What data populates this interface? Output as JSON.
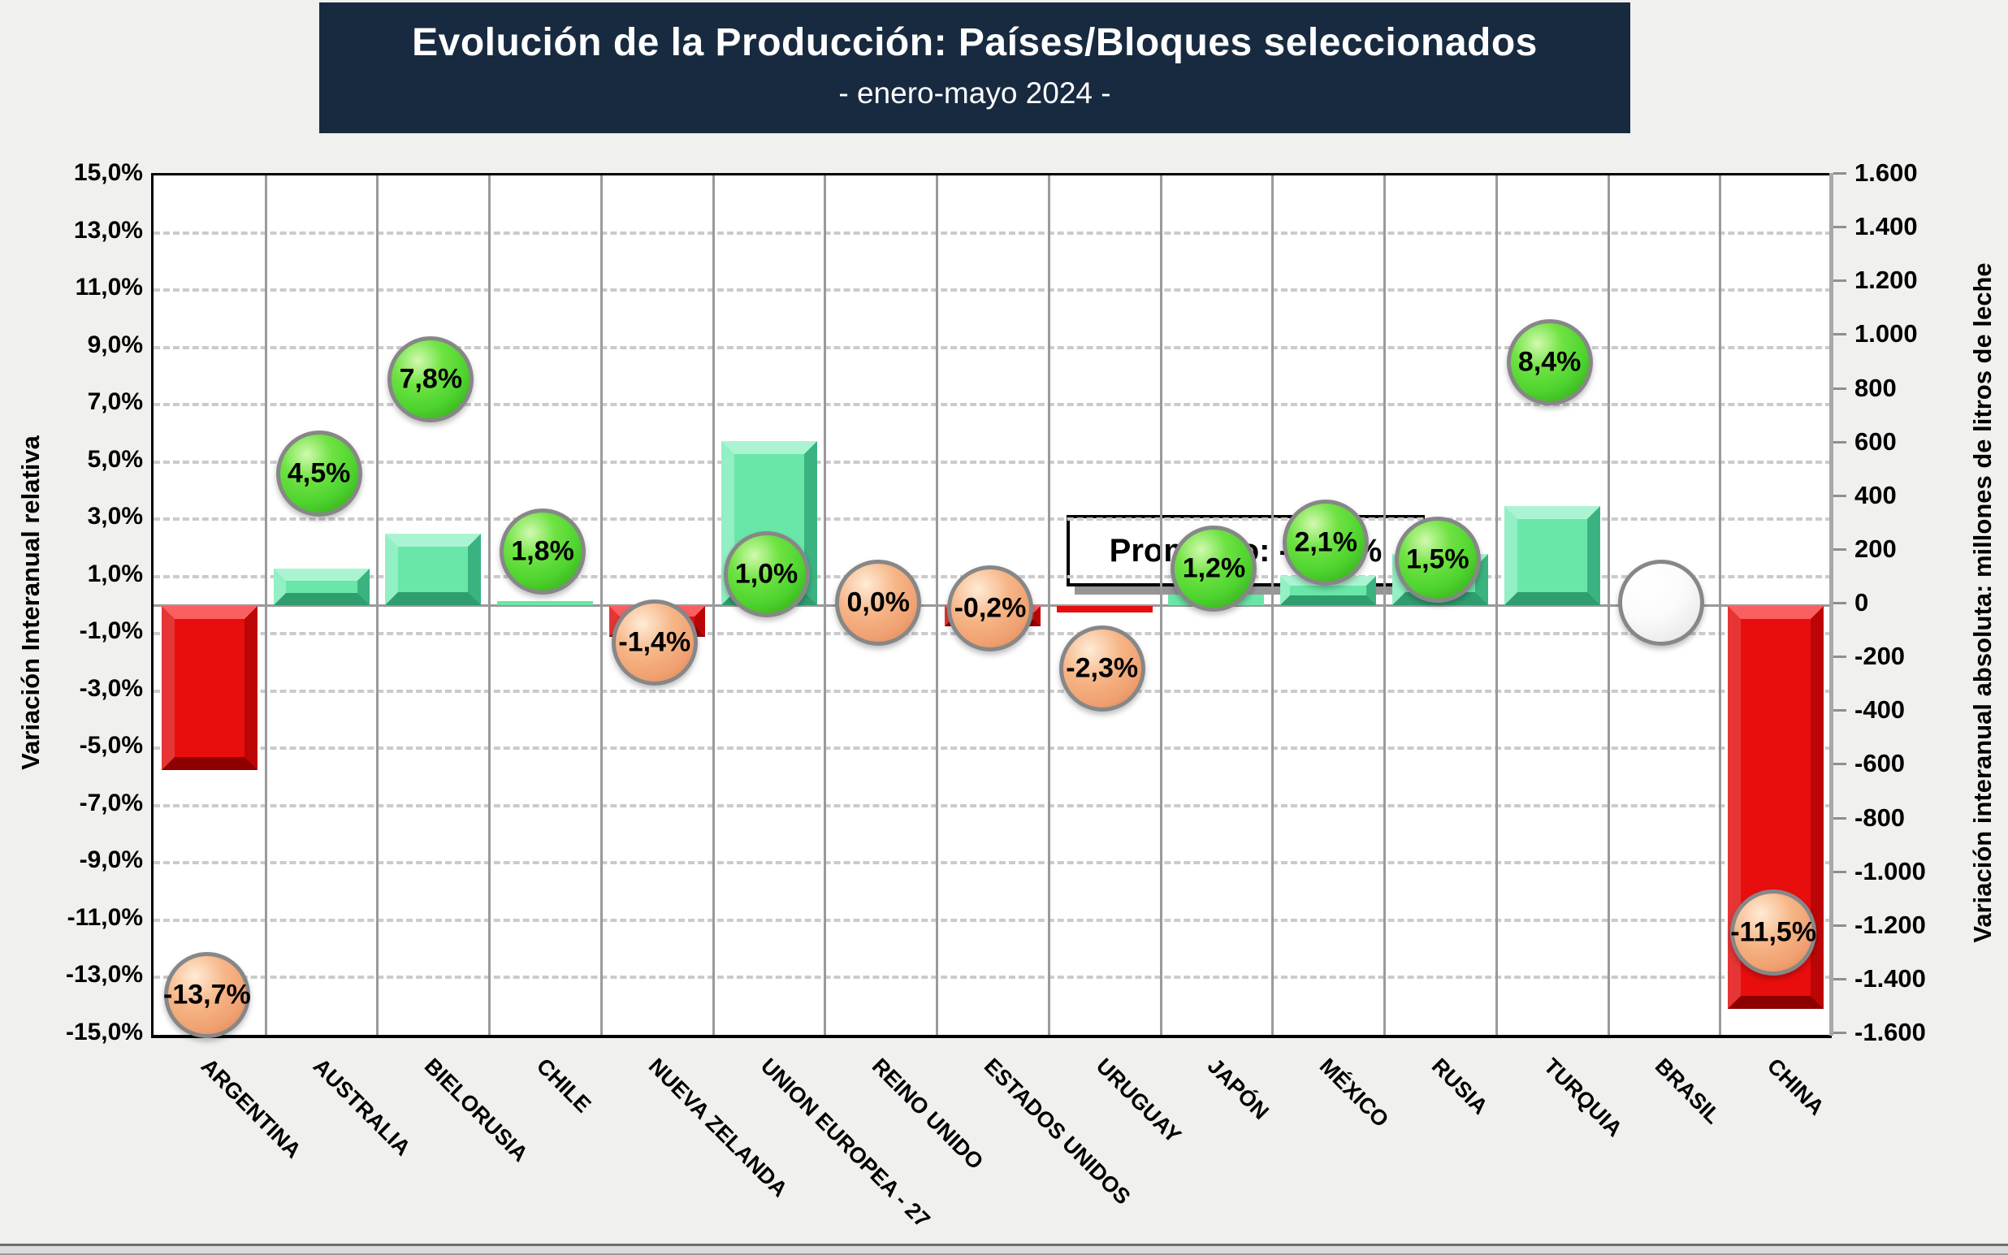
{
  "title": {
    "main": "Evolución de la Producción: Países/Bloques seleccionados",
    "subtitle": "- enero-mayo 2024 -"
  },
  "annotation": {
    "text": "Promedio: -0,32%"
  },
  "colors": {
    "title_bg": "#172A40",
    "background": "#F0F0EE",
    "plot_bg": "#FFFFFF",
    "positive_bar": "#69E7A8",
    "negative_bar": "#E90E0E",
    "positive_ball": "#4ED42F",
    "negative_ball": "#F2A878",
    "neutral_ball": "#FFFFFF"
  },
  "chart_data": {
    "type": "bar",
    "combo": "beveled bars on right axis + labeled sphere markers on left axis",
    "categories": [
      "ARGENTINA",
      "AUSTRALIA",
      "BIELORUSIA",
      "CHILE",
      "NUEVA ZELANDA",
      "UNION EUROPEA - 27",
      "REINO UNIDO",
      "ESTADOS UNIDOS",
      "URUGUAY",
      "JAPÓN",
      "MÉXICO",
      "RUSIA",
      "TURQUIA",
      "BRASIL",
      "CHINA"
    ],
    "series": [
      {
        "name": "Variación Interanual relativa",
        "type": "point",
        "axis": "left",
        "unit": "%",
        "values": [
          -13.7,
          4.5,
          7.8,
          1.8,
          -1.4,
          1.0,
          0.0,
          -0.2,
          -2.3,
          1.2,
          2.1,
          1.5,
          8.4,
          null,
          -11.5
        ],
        "labels": [
          "-13,7%",
          "4,5%",
          "7,8%",
          "1,8%",
          "-1,4%",
          "1,0%",
          "0,0%",
          "-0,2%",
          "-2,3%",
          "1,2%",
          "2,1%",
          "1,5%",
          "8,4%",
          null,
          "-11,5%"
        ],
        "marker_colors": [
          "orange",
          "green",
          "green",
          "green",
          "orange",
          "green",
          "orange",
          "orange",
          "orange",
          "green",
          "green",
          "green",
          "green",
          "white",
          "orange"
        ]
      },
      {
        "name": "Variación interanual absoluta",
        "type": "bar",
        "axis": "right",
        "unit": "millones de litros de leche",
        "values": [
          -610,
          135,
          265,
          15,
          -115,
          610,
          0,
          -75,
          -25,
          40,
          110,
          190,
          370,
          null,
          -1500
        ]
      }
    ],
    "left_axis": {
      "title": "Variación Interanual relativa",
      "min": -15,
      "max": 15,
      "step": 2,
      "tick_values": [
        15,
        13,
        11,
        9,
        7,
        5,
        3,
        1,
        -1,
        -3,
        -5,
        -7,
        -9,
        -11,
        -13,
        -15
      ],
      "tick_labels": [
        "15,0%",
        "13,0%",
        "11,0%",
        "9,0%",
        "7,0%",
        "5,0%",
        "3,0%",
        "1,0%",
        "-1,0%",
        "-3,0%",
        "-5,0%",
        "-7,0%",
        "-9,0%",
        "-11,0%",
        "-13,0%",
        "-15,0%"
      ]
    },
    "right_axis": {
      "title": "Variación interanual absoluta: millones de litros de leche",
      "min": -1600,
      "max": 1600,
      "step": 200,
      "tick_values": [
        1600,
        1400,
        1200,
        1000,
        800,
        600,
        400,
        200,
        0,
        -200,
        -400,
        -600,
        -800,
        -1000,
        -1200,
        -1400,
        -1600
      ],
      "tick_labels": [
        "1.600",
        "1.400",
        "1.200",
        "1.000",
        "800",
        "600",
        "400",
        "200",
        "0",
        "-200",
        "-400",
        "-600",
        "-800",
        "-1.000",
        "-1.200",
        "-1.400",
        "-1.600"
      ]
    },
    "gridlines": {
      "dashed_at_percent": [
        13,
        11,
        9,
        7,
        5,
        3,
        1,
        -1,
        -3,
        -5,
        -7,
        -9,
        -11,
        -13
      ],
      "zero_line": true,
      "vertical_separators": true
    }
  }
}
